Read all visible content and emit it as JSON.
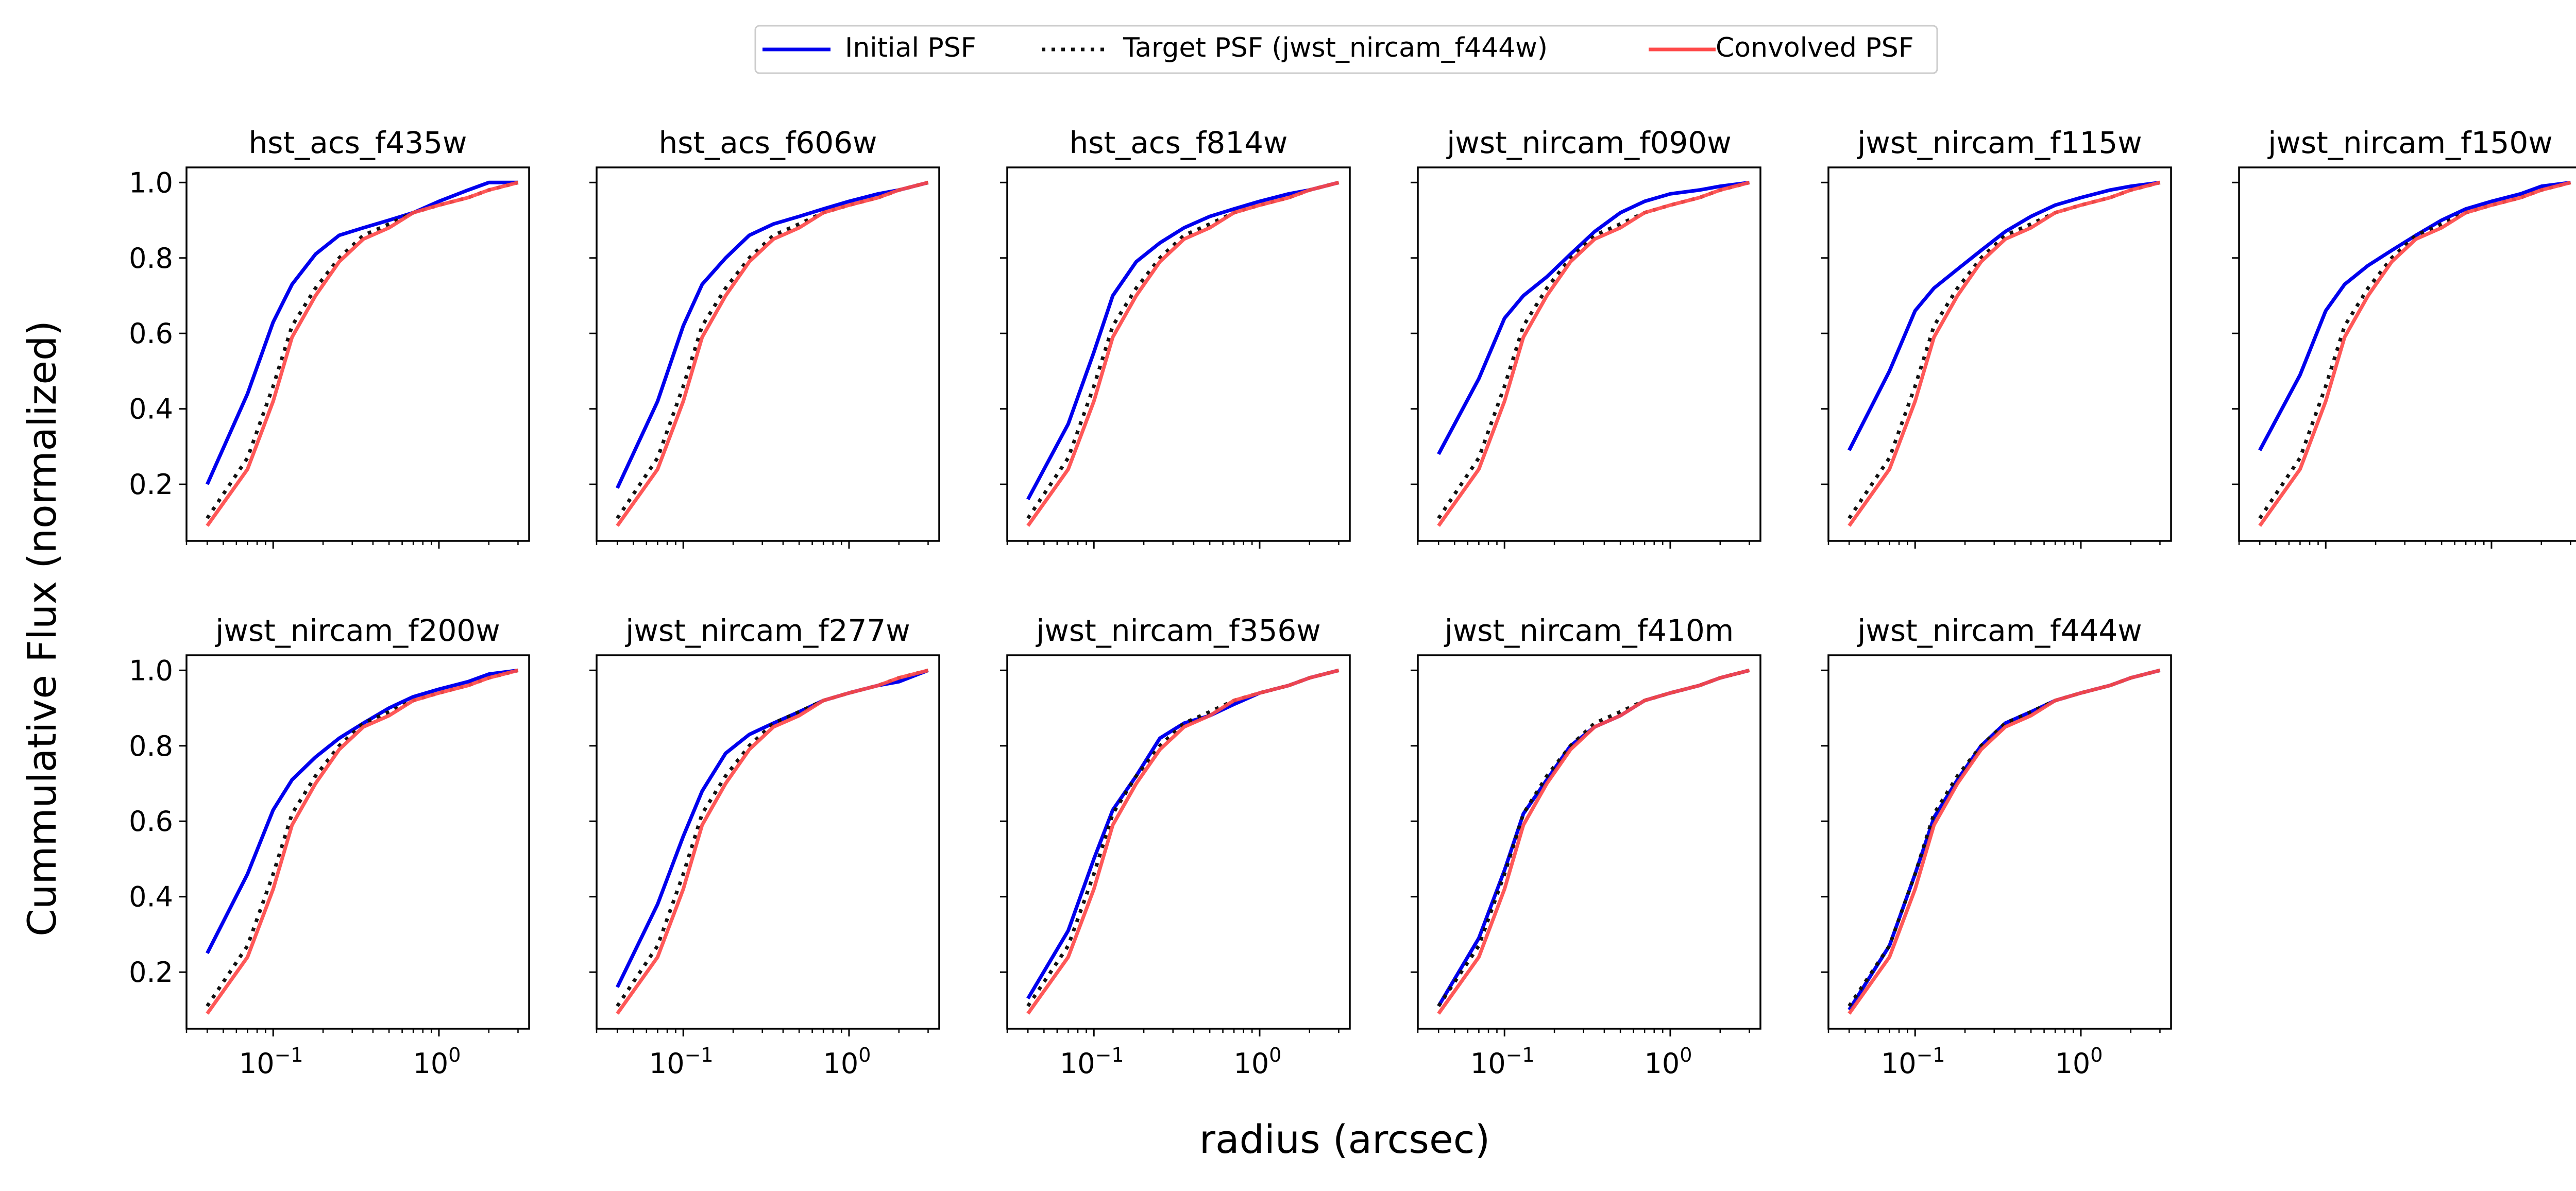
{
  "figure": {
    "xlabel": "radius (arcsec)",
    "ylabel": "Cummulative Flux (normalized)",
    "legend": {
      "placement": "top-center",
      "entries": [
        {
          "label": "Initial PSF",
          "color": "#0000ee",
          "style": "solid"
        },
        {
          "label": "Target PSF (jwst_nircam_f444w)",
          "color": "#111111",
          "style": "dotted"
        },
        {
          "label": "Convolved PSF",
          "color": "#ff4a4a",
          "style": "solid"
        }
      ]
    }
  },
  "chart_data": {
    "type": "line",
    "x_scale": "log",
    "xlim": [
      0.03,
      3.5
    ],
    "ylim": [
      0.05,
      1.04
    ],
    "xticks": [
      {
        "value": 0.1,
        "base": "10",
        "exp": "−1"
      },
      {
        "value": 1,
        "base": "10",
        "exp": "0"
      }
    ],
    "yticks": [
      0.2,
      0.4,
      0.6,
      0.8,
      1.0
    ],
    "ytick_labels": [
      "0.2",
      "0.4",
      "0.6",
      "0.8",
      "1.0"
    ],
    "grid": false,
    "x": [
      0.04,
      0.07,
      0.1,
      0.13,
      0.18,
      0.25,
      0.35,
      0.5,
      0.7,
      1.0,
      1.5,
      2.0,
      3.0
    ],
    "target": [
      0.11,
      0.27,
      0.46,
      0.62,
      0.72,
      0.8,
      0.86,
      0.89,
      0.92,
      0.94,
      0.96,
      0.98,
      1.0
    ],
    "convolved": [
      0.09,
      0.24,
      0.42,
      0.59,
      0.7,
      0.79,
      0.85,
      0.88,
      0.92,
      0.94,
      0.96,
      0.98,
      1.0
    ],
    "panels": [
      {
        "title": "hst_acs_f435w",
        "initial": [
          0.2,
          0.44,
          0.63,
          0.73,
          0.81,
          0.86,
          0.88,
          0.9,
          0.92,
          0.95,
          0.98,
          1.0,
          1.0
        ]
      },
      {
        "title": "hst_acs_f606w",
        "initial": [
          0.19,
          0.42,
          0.62,
          0.73,
          0.8,
          0.86,
          0.89,
          0.91,
          0.93,
          0.95,
          0.97,
          0.98,
          1.0
        ]
      },
      {
        "title": "hst_acs_f814w",
        "initial": [
          0.16,
          0.36,
          0.55,
          0.7,
          0.79,
          0.84,
          0.88,
          0.91,
          0.93,
          0.95,
          0.97,
          0.98,
          1.0
        ]
      },
      {
        "title": "jwst_nircam_f090w",
        "initial": [
          0.28,
          0.48,
          0.64,
          0.7,
          0.75,
          0.81,
          0.87,
          0.92,
          0.95,
          0.97,
          0.98,
          0.99,
          1.0
        ]
      },
      {
        "title": "jwst_nircam_f115w",
        "initial": [
          0.29,
          0.5,
          0.66,
          0.72,
          0.77,
          0.82,
          0.87,
          0.91,
          0.94,
          0.96,
          0.98,
          0.99,
          1.0
        ]
      },
      {
        "title": "jwst_nircam_f150w",
        "initial": [
          0.29,
          0.49,
          0.66,
          0.73,
          0.78,
          0.82,
          0.86,
          0.9,
          0.93,
          0.95,
          0.97,
          0.99,
          1.0
        ]
      },
      {
        "title": "jwst_nircam_f200w",
        "initial": [
          0.25,
          0.46,
          0.63,
          0.71,
          0.77,
          0.82,
          0.86,
          0.9,
          0.93,
          0.95,
          0.97,
          0.99,
          1.0
        ]
      },
      {
        "title": "jwst_nircam_f277w",
        "initial": [
          0.16,
          0.38,
          0.56,
          0.68,
          0.78,
          0.83,
          0.86,
          0.89,
          0.92,
          0.94,
          0.96,
          0.97,
          1.0
        ]
      },
      {
        "title": "jwst_nircam_f356w",
        "initial": [
          0.13,
          0.31,
          0.5,
          0.63,
          0.72,
          0.82,
          0.86,
          0.88,
          0.91,
          0.94,
          0.96,
          0.98,
          1.0
        ]
      },
      {
        "title": "jwst_nircam_f410m",
        "initial": [
          0.11,
          0.29,
          0.47,
          0.62,
          0.71,
          0.8,
          0.85,
          0.88,
          0.92,
          0.94,
          0.96,
          0.98,
          1.0
        ]
      },
      {
        "title": "jwst_nircam_f444w",
        "initial": [
          0.1,
          0.27,
          0.46,
          0.61,
          0.71,
          0.8,
          0.86,
          0.89,
          0.92,
          0.94,
          0.96,
          0.98,
          1.0
        ]
      }
    ]
  }
}
